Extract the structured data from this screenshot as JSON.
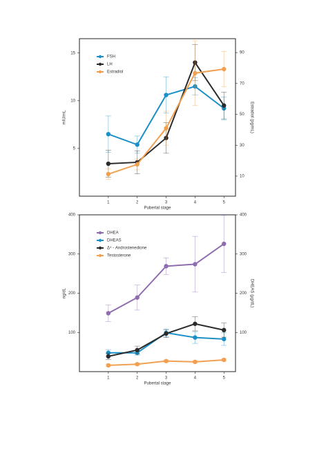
{
  "chart_data": [
    {
      "type": "line",
      "y_label": "mIU/mL",
      "y2_label": "Estradiol (pg/mL)",
      "x_label": "Pubertal stage",
      "x": [
        1,
        2,
        3,
        4,
        5
      ],
      "xlim": [
        0,
        5.4
      ],
      "xticks": [
        1,
        2,
        3,
        4,
        5
      ],
      "ylim": [
        0,
        16.5
      ],
      "yticks": [
        5,
        10,
        15
      ],
      "y2lim": [
        -3,
        99
      ],
      "y2ticks": [
        10,
        30,
        50,
        70,
        90
      ],
      "series": [
        {
          "name": "FSH",
          "color": "#1b8fc6",
          "values": [
            6.5,
            5.4,
            10.6,
            11.5,
            9.2
          ],
          "errors": [
            1.9,
            0.9,
            1.9,
            0.9,
            1.2
          ]
        },
        {
          "name": "LH",
          "color": "#2b2b2b",
          "values": [
            3.4,
            3.55,
            6.1,
            14,
            9.5
          ],
          "errors": [
            1.4,
            1.2,
            1.6,
            1.9,
            1.4
          ]
        },
        {
          "name": "Estradiol",
          "color": "#f0a050",
          "axis": "y2",
          "values": [
            11.3,
            17.6,
            41,
            76.7,
            79.3
          ],
          "errors": [
            3.5,
            3.5,
            11,
            21,
            11.5
          ]
        }
      ]
    },
    {
      "type": "line",
      "y_label": "ng/dL",
      "y2_label": "DHEAS (µg/dL)",
      "x_label": "Pubertal stage",
      "x": [
        1,
        2,
        3,
        4,
        5
      ],
      "xlim": [
        0,
        5.4
      ],
      "xticks": [
        1,
        2,
        3,
        4,
        5
      ],
      "ylim": [
        0,
        400
      ],
      "yticks": [
        100,
        200,
        300,
        400
      ],
      "y2lim": [
        0,
        400
      ],
      "y2ticks": [
        100,
        200,
        300,
        400
      ],
      "series": [
        {
          "name": "DHEA",
          "color": "#8f6bb0",
          "values": [
            149,
            189,
            269,
            274,
            326
          ],
          "errors": [
            21,
            32,
            21,
            71,
            73
          ]
        },
        {
          "name": "DHEAS",
          "color": "#1b8fc6",
          "axis": "y2",
          "values": [
            48,
            48,
            99,
            87,
            83
          ],
          "errors": [
            8,
            6,
            10,
            15,
            16
          ]
        },
        {
          "name": "Δ⁴ - Androstenedione",
          "color": "#2b2b2b",
          "values": [
            39,
            55,
            97,
            122,
            106
          ],
          "errors": [
            8,
            10,
            10,
            18,
            18
          ]
        },
        {
          "name": "Testosterone",
          "color": "#f0a050",
          "values": [
            16,
            19,
            27,
            25,
            30
          ],
          "errors": [
            3,
            3,
            3,
            3,
            3
          ]
        }
      ]
    }
  ]
}
